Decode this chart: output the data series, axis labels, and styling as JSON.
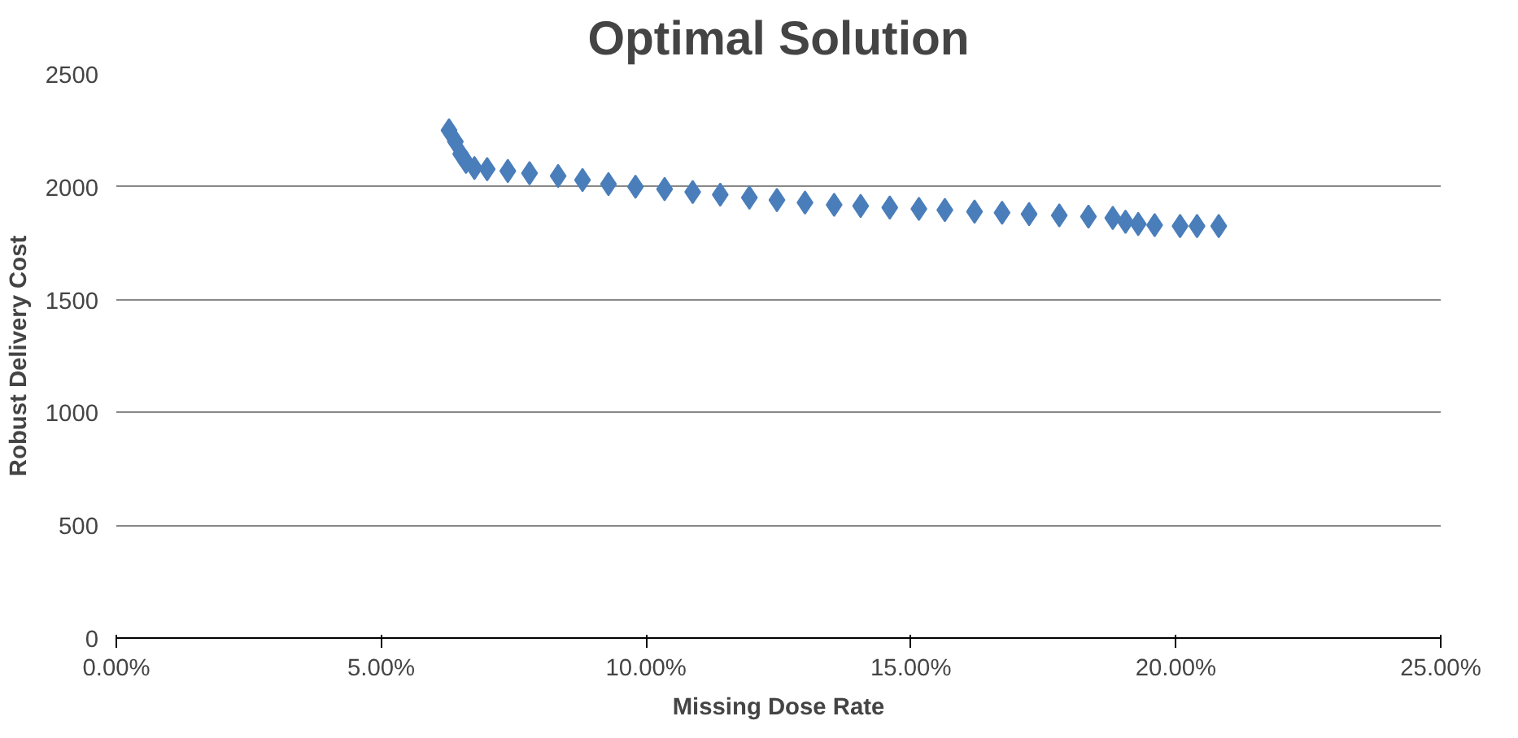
{
  "chart_data": {
    "type": "scatter",
    "title": "Optimal Solution",
    "xlabel": "Missing Dose Rate",
    "ylabel": "Robust Delivery Cost",
    "x": [
      0.0628,
      0.064,
      0.065,
      0.066,
      0.0676,
      0.07,
      0.0739,
      0.078,
      0.0834,
      0.088,
      0.0929,
      0.098,
      0.1035,
      0.1088,
      0.114,
      0.1195,
      0.1247,
      0.13,
      0.1355,
      0.1405,
      0.146,
      0.1515,
      0.1564,
      0.162,
      0.1672,
      0.1723,
      0.178,
      0.1835,
      0.1881,
      0.1905,
      0.1929,
      0.196,
      0.2008,
      0.204,
      0.2081
    ],
    "values": [
      2250,
      2200,
      2145,
      2110,
      2083,
      2078,
      2070,
      2060,
      2048,
      2030,
      2012,
      2000,
      1990,
      1977,
      1965,
      1952,
      1941,
      1930,
      1920,
      1915,
      1908,
      1902,
      1897,
      1890,
      1885,
      1879,
      1873,
      1868,
      1862,
      1845,
      1835,
      1830,
      1826,
      1826,
      1826
    ],
    "color": "#4a7ebb",
    "marker": "diamond",
    "grid": "y",
    "xlim": [
      0,
      0.25
    ],
    "xticks": [
      {
        "value": 0,
        "label": "0.00%"
      },
      {
        "value": 0.05,
        "label": "5.00%"
      },
      {
        "value": 0.1,
        "label": "10.00%"
      },
      {
        "value": 0.15,
        "label": "15.00%"
      },
      {
        "value": 0.2,
        "label": "20.00%"
      },
      {
        "value": 0.25,
        "label": "25.00%"
      }
    ],
    "ylim": [
      0,
      2500
    ],
    "yticks": [
      0,
      500,
      1000,
      1500,
      2000,
      2500
    ]
  }
}
